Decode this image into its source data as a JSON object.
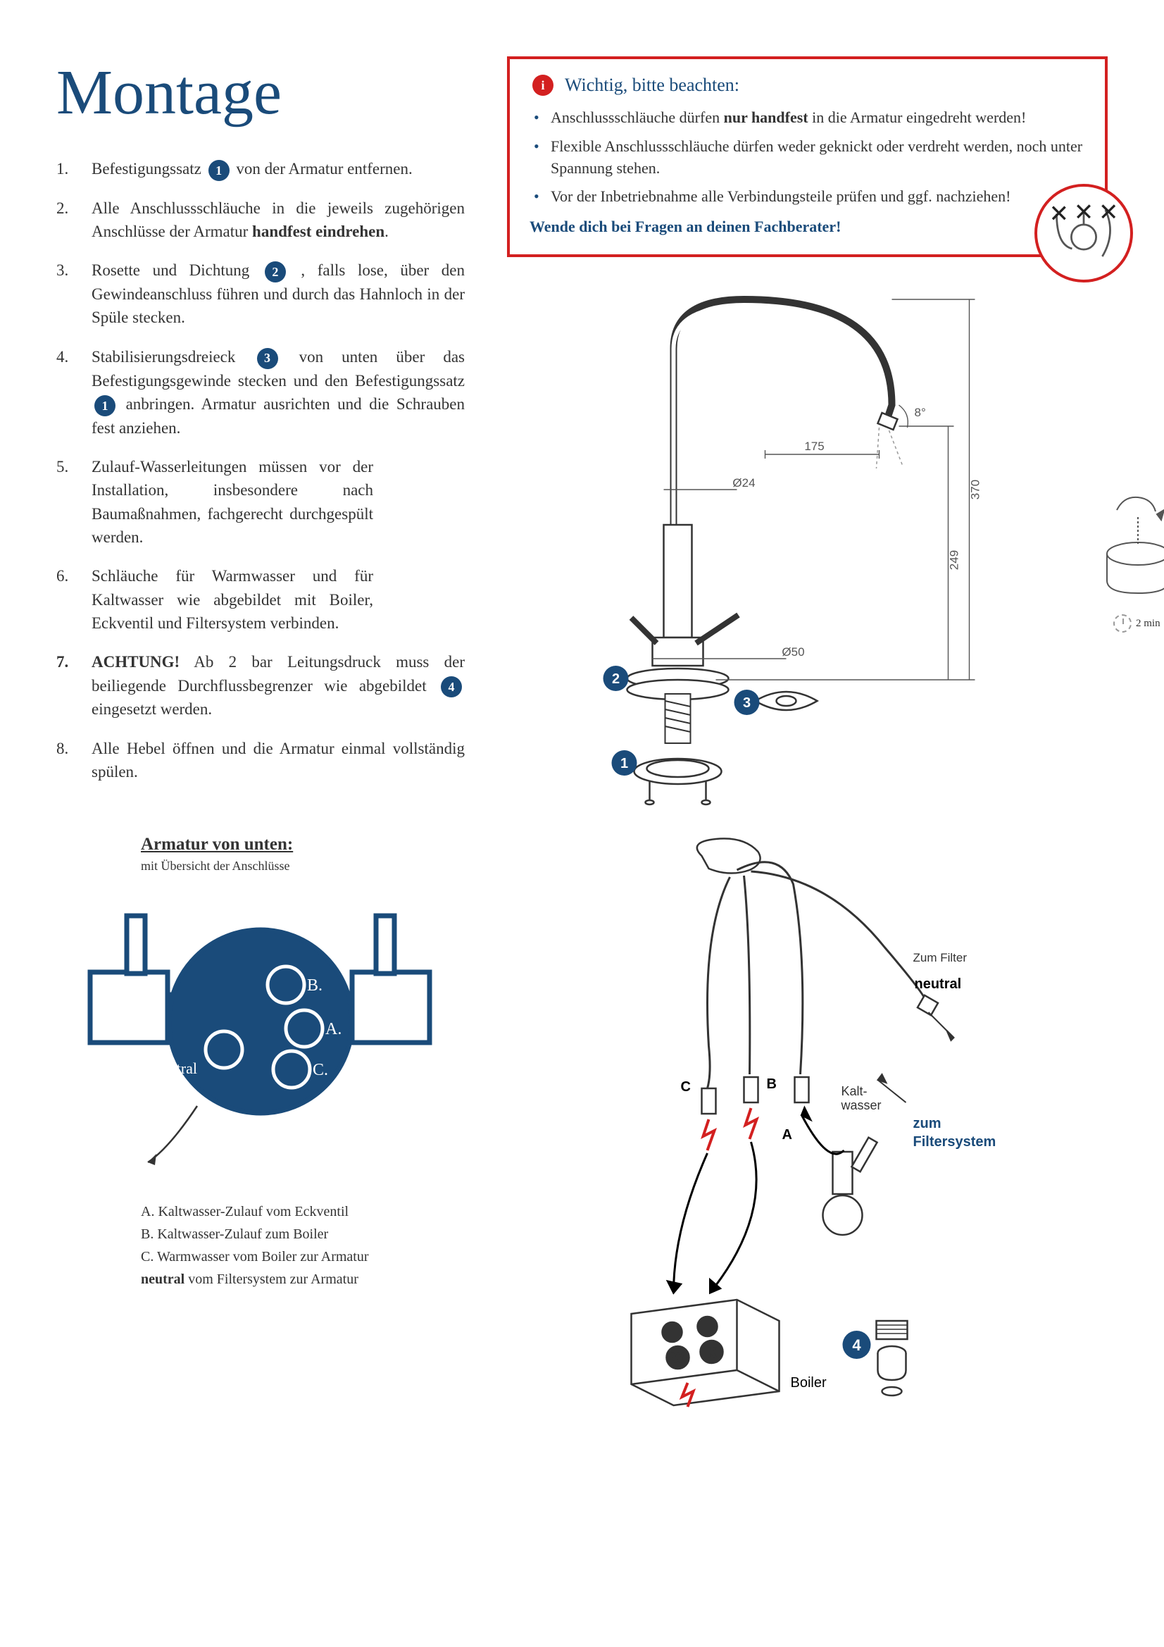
{
  "title": "Montage",
  "steps": [
    {
      "pre": "Befestigungssatz",
      "badge": "1",
      "post": "von der Armatur entfernen."
    },
    {
      "text": "Alle Anschlussschläuche in die jeweils zugehörigen Anschlüsse der Armatur <b>handfest eindrehen</b>."
    },
    {
      "pre": "Rosette und Dichtung",
      "badge": "2",
      "post": ", falls lose, über den Gewindeanschluss führen und durch das Hahnloch in der Spüle stecken."
    },
    {
      "pre": "Stabilisierungsdreieck",
      "badge": "3",
      "mid": "von unten über das Befestigungsgewinde stecken und den Befestigungssatz",
      "badge2": "1",
      "post": "anbringen. Armatur ausrichten und die Schrauben fest anziehen."
    },
    {
      "text": "Zulauf-Wasserleitungen müssen vor der Installation, insbesondere nach Baumaßnahmen, fachgerecht durchgespült werden.",
      "narrow": true
    },
    {
      "text": "Schläuche für Warmwasser und für Kaltwasser wie abgebildet mit Boiler, Eckventil und Filtersystem verbinden.",
      "narrow": true
    },
    {
      "strong": "ACHTUNG!",
      "pre": " Ab 2 bar Leitungsdruck muss der beiliegende Durchflussbegrenzer wie abgebildet",
      "badge": "4",
      "post": "eingesetzt werden."
    },
    {
      "text": "Alle Hebel öffnen und die Armatur einmal vollständig spülen."
    }
  ],
  "notice": {
    "title": "Wichtig, bitte beachten:",
    "bullets": [
      "Anschlussschläuche dürfen <b>nur handfest</b> in die Armatur eingedreht werden!",
      "Flexible Anschlussschläuche dürfen weder geknickt oder verdreht werden, noch unter Spannung stehen.",
      "Vor der Inbetriebnahme alle Verbindungsteile prüfen und ggf. nachziehen!"
    ],
    "footer": "Wende dich bei Fragen an deinen Fachberater!"
  },
  "dimensions": {
    "height_total": "370",
    "height_handle": "249",
    "spout_reach": "175",
    "angle": "8°",
    "diam_base": "Ø50",
    "diam_stem": "Ø24"
  },
  "callouts": {
    "c1": "1",
    "c2": "2",
    "c3": "3",
    "c4": "4"
  },
  "underside": {
    "title": "Armatur von unten:",
    "subtitle": "mit Übersicht der Anschlüsse",
    "ports": {
      "a": "A.",
      "b": "B.",
      "c": "C.",
      "neutral": "neutral"
    },
    "legend": [
      "A. Kaltwasser-Zulauf vom Eckventil",
      "B. Kaltwasser-Zulauf zum Boiler",
      "C. Warmwasser vom Boiler zur Armatur",
      "<b>neutral</b> vom Filtersystem zur Armatur"
    ]
  },
  "hoses": {
    "labels": {
      "a": "A",
      "b": "B",
      "c": "C",
      "neutral": "neutral",
      "boiler": "Boiler",
      "to_filter": "Zum Filter",
      "kalt": "Kalt-wasser",
      "to_filtersys": "zum Filtersystem"
    }
  },
  "timer": "2 min",
  "colors": {
    "brand": "#1a4b7a",
    "alert": "#d32020",
    "text": "#333",
    "gray": "#555"
  }
}
